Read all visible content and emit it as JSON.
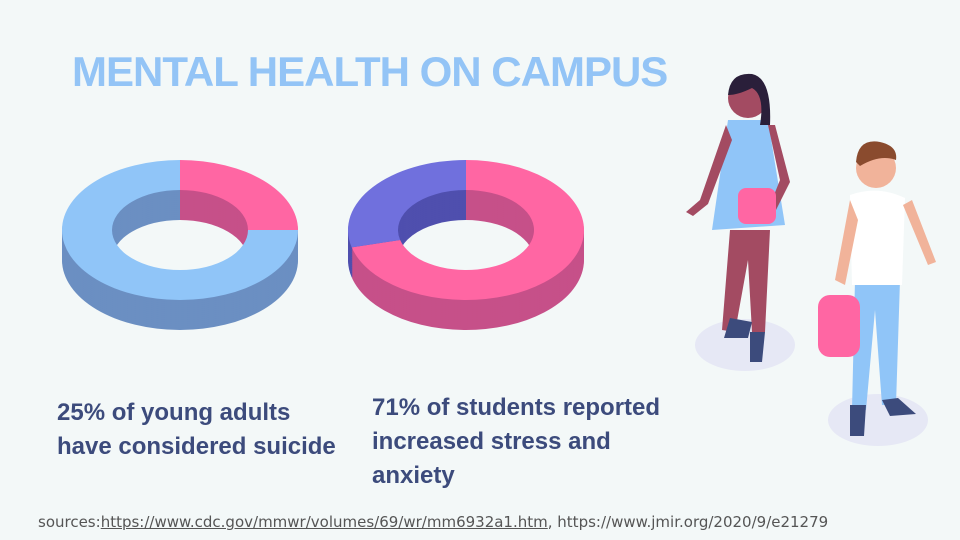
{
  "title": "MENTAL HEALTH ON CAMPUS",
  "chart_data": [
    {
      "type": "donut",
      "caption": "25% of young adults have considered suicide",
      "values": [
        25,
        75
      ],
      "colors": [
        "#ff66a3",
        "#90c5f8"
      ],
      "side_colors": [
        "#c65089",
        "#6b8fc2"
      ]
    },
    {
      "type": "donut",
      "caption": "71% of students reported increased stress and anxiety",
      "values": [
        71,
        29
      ],
      "colors": [
        "#ff66a3",
        "#7070dd"
      ],
      "side_colors": [
        "#c65089",
        "#4f4fae"
      ]
    }
  ],
  "sources": {
    "label": "sources:",
    "links": [
      "https://www.cdc.gov/mmwr/volumes/69/wr/mm6932a1.htm",
      "https://www.jmir.org/2020/9/e21279"
    ],
    "separator": ", "
  }
}
